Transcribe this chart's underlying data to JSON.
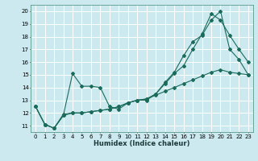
{
  "title": "",
  "xlabel": "Humidex (Indice chaleur)",
  "ylabel": "",
  "xlim": [
    -0.5,
    23.5
  ],
  "ylim": [
    10.5,
    20.5
  ],
  "xticks": [
    0,
    1,
    2,
    3,
    4,
    5,
    6,
    7,
    8,
    9,
    10,
    11,
    12,
    13,
    14,
    15,
    16,
    17,
    18,
    19,
    20,
    21,
    22,
    23
  ],
  "yticks": [
    11,
    12,
    13,
    14,
    15,
    16,
    17,
    18,
    19,
    20
  ],
  "background_color": "#cce9f0",
  "grid_color": "#ffffff",
  "line_color": "#1a6b5a",
  "line1_x": [
    0,
    1,
    2,
    3,
    4,
    5,
    6,
    7,
    8,
    9,
    10,
    11,
    12,
    13,
    14,
    15,
    16,
    17,
    18,
    19,
    20,
    21,
    22,
    23
  ],
  "line1_y": [
    12.5,
    11.1,
    10.8,
    11.8,
    15.1,
    14.1,
    14.1,
    14.0,
    12.5,
    12.3,
    12.8,
    13.0,
    13.0,
    13.5,
    14.3,
    15.1,
    15.7,
    17.0,
    18.2,
    19.8,
    19.3,
    18.1,
    17.0,
    16.0
  ],
  "line2_x": [
    0,
    1,
    2,
    3,
    4,
    5,
    6,
    7,
    8,
    9,
    10,
    11,
    12,
    13,
    14,
    15,
    16,
    17,
    18,
    19,
    20,
    21,
    22,
    23
  ],
  "line2_y": [
    12.5,
    11.1,
    10.8,
    11.9,
    12.0,
    12.0,
    12.1,
    12.2,
    12.3,
    12.5,
    12.8,
    13.0,
    13.1,
    13.5,
    14.4,
    15.2,
    16.5,
    17.6,
    18.1,
    19.3,
    20.0,
    17.0,
    16.2,
    15.0
  ],
  "line3_x": [
    0,
    1,
    2,
    3,
    4,
    5,
    6,
    7,
    8,
    9,
    10,
    11,
    12,
    13,
    14,
    15,
    16,
    17,
    18,
    19,
    20,
    21,
    22,
    23
  ],
  "line3_y": [
    12.5,
    11.1,
    10.8,
    11.8,
    12.0,
    12.0,
    12.1,
    12.2,
    12.3,
    12.5,
    12.8,
    13.0,
    13.1,
    13.4,
    13.7,
    14.0,
    14.3,
    14.6,
    14.9,
    15.2,
    15.4,
    15.2,
    15.1,
    15.0
  ]
}
